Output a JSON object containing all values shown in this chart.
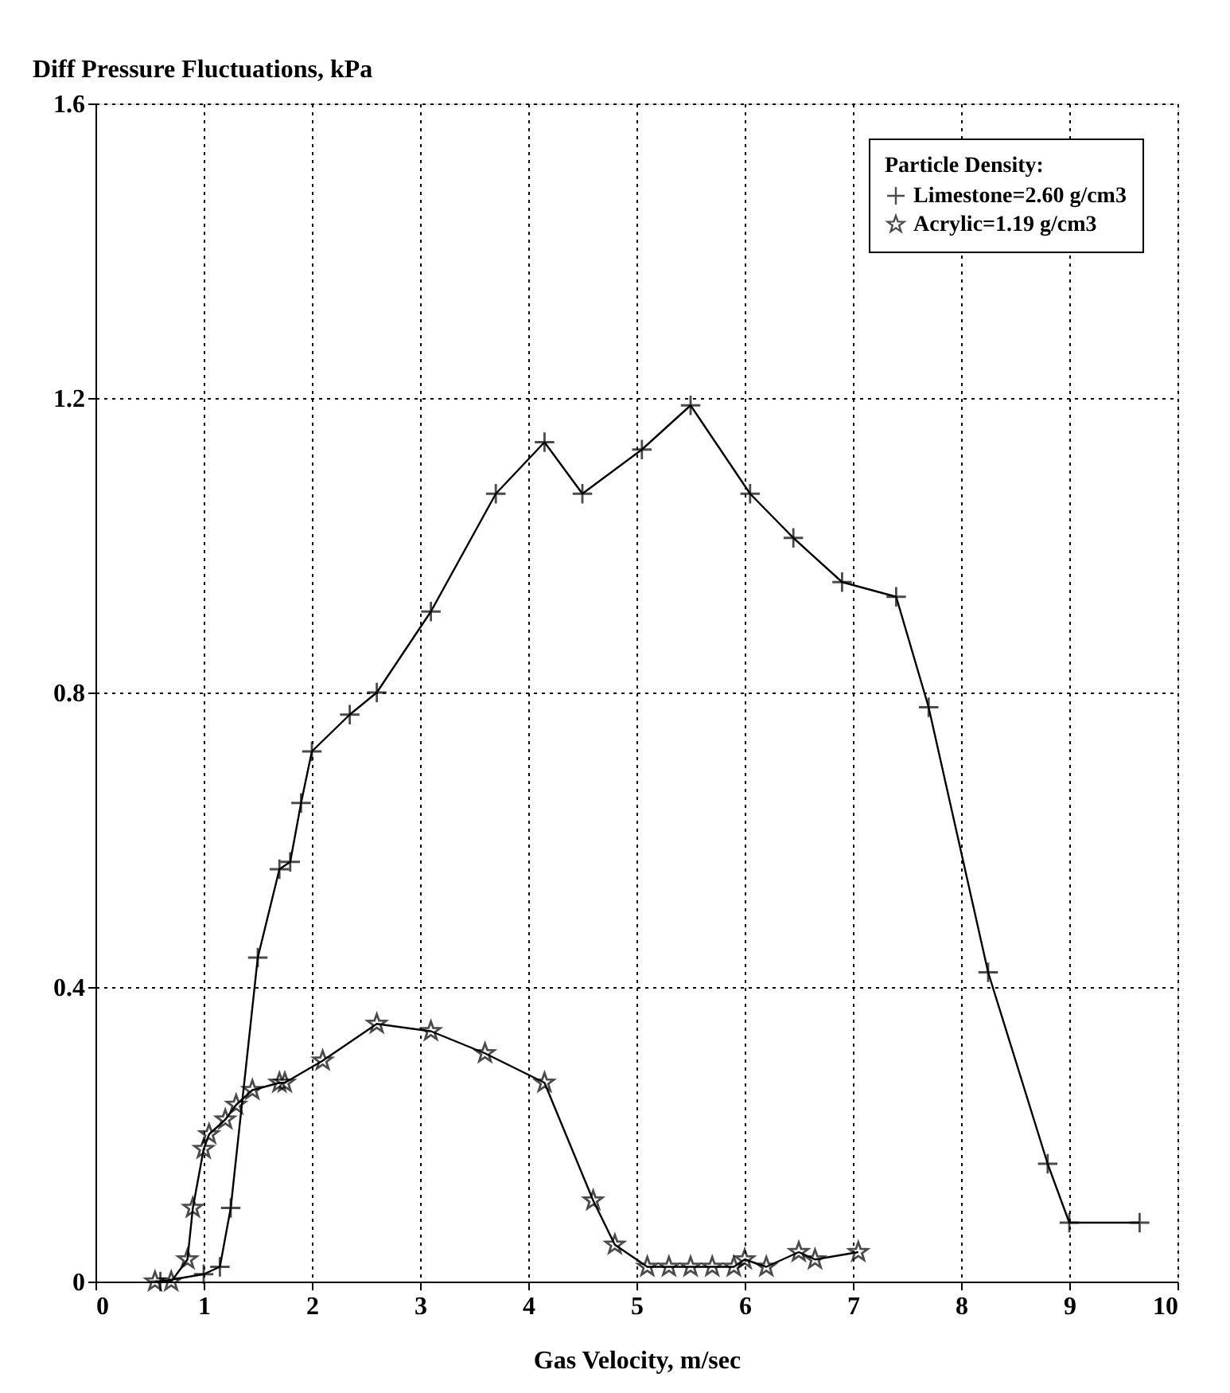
{
  "chart_data": {
    "type": "line",
    "ylabel": "Diff Pressure Fluctuations, kPa",
    "xlabel": "Gas Velocity, m/sec",
    "legend_title": "Particle Density:",
    "legend": "top right",
    "grid": true,
    "xlim": [
      0,
      10
    ],
    "xticks": [
      0,
      1,
      2,
      3,
      4,
      5,
      6,
      7,
      8,
      9,
      10
    ],
    "ylim": [
      0,
      1.6
    ],
    "yticks": [
      {
        "value": 0,
        "label": "0"
      },
      {
        "value": 0.4,
        "label": "0.4"
      },
      {
        "value": 0.8,
        "label": "0.8"
      },
      {
        "value": 1.2,
        "label": "1.2"
      },
      {
        "value": 1.6,
        "label": "1.6"
      }
    ],
    "series": [
      {
        "name": "Limestone=2.60 g/cm3",
        "color": "#000000",
        "marker": "cross",
        "x": [
          0.6,
          1.0,
          1.15,
          1.25,
          1.5,
          1.7,
          1.8,
          1.9,
          2.0,
          2.35,
          2.6,
          3.1,
          3.7,
          4.15,
          4.5,
          5.05,
          5.5,
          6.05,
          6.45,
          6.9,
          7.4,
          7.7,
          8.25,
          8.8,
          9.0,
          9.65
        ],
        "values": [
          0,
          0.01,
          0.02,
          0.1,
          0.44,
          0.56,
          0.57,
          0.65,
          0.72,
          0.77,
          0.8,
          0.91,
          1.07,
          1.14,
          1.07,
          1.13,
          1.19,
          1.07,
          1.01,
          0.95,
          0.93,
          0.78,
          0.42,
          0.16,
          0.08,
          0.08
        ]
      },
      {
        "name": "Acrylic=1.19 g/cm3",
        "color": "#000000",
        "marker": "star",
        "x": [
          0.55,
          0.7,
          0.85,
          0.9,
          1.0,
          1.05,
          1.2,
          1.3,
          1.45,
          1.7,
          1.75,
          2.1,
          2.6,
          3.1,
          3.6,
          4.15,
          4.6,
          4.8,
          5.1,
          5.3,
          5.5,
          5.7,
          5.9,
          6.0,
          6.2,
          6.5,
          6.65,
          7.05
        ],
        "values": [
          0,
          0,
          0.03,
          0.1,
          0.18,
          0.2,
          0.22,
          0.24,
          0.26,
          0.27,
          0.27,
          0.3,
          0.35,
          0.34,
          0.31,
          0.27,
          0.11,
          0.05,
          0.02,
          0.02,
          0.02,
          0.02,
          0.02,
          0.03,
          0.02,
          0.04,
          0.03,
          0.04
        ]
      }
    ]
  }
}
